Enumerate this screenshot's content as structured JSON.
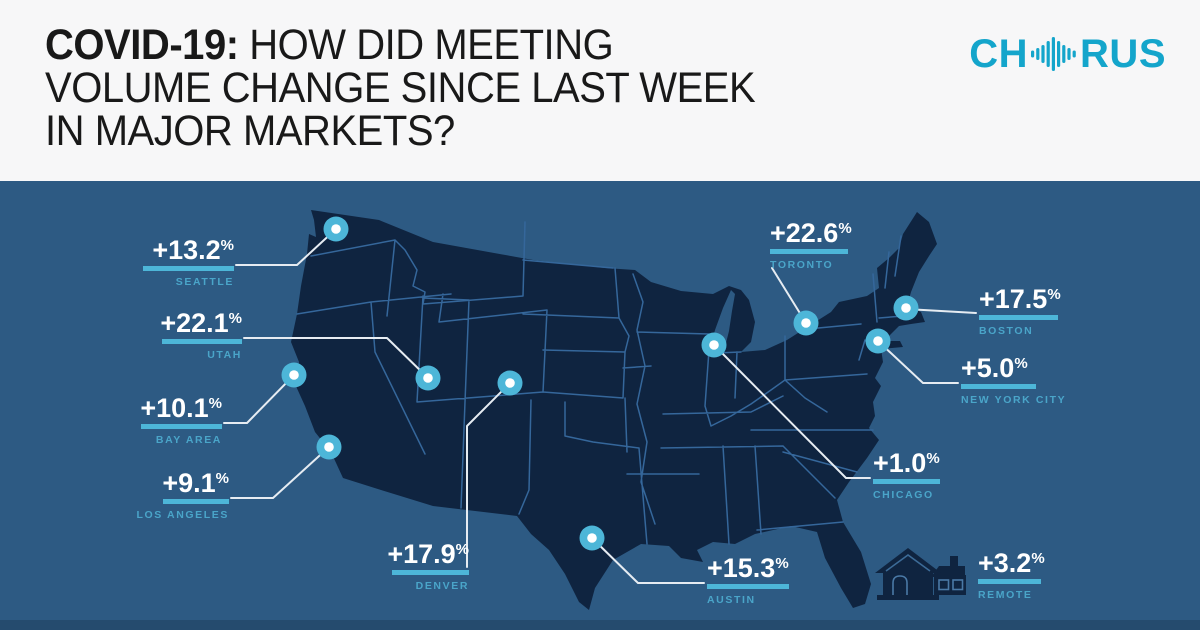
{
  "header": {
    "title": {
      "bold": "COVID-19:",
      "line1_rest": " HOW DID MEETING",
      "line2": "VOLUME CHANGE SINCE LAST WEEK",
      "line3": "IN MAJOR MARKETS?"
    },
    "logo": {
      "text_left": "CH",
      "text_right": "RUS",
      "icon": "soundwave-icon"
    }
  },
  "map": {
    "region": "United States",
    "style": "dark-silhouette-with-state-borders"
  },
  "chart_data": {
    "type": "map",
    "title": "COVID-19: How did meeting volume change since last week in major markets?",
    "unit": "%",
    "percent": "%",
    "legend_position": "none",
    "markets": [
      {
        "id": "seattle",
        "city": "SEATTLE",
        "value": "+13.2",
        "change_pct": 13.2
      },
      {
        "id": "toronto",
        "city": "TORONTO",
        "value": "+22.6",
        "change_pct": 22.6
      },
      {
        "id": "boston",
        "city": "BOSTON",
        "value": "+17.5",
        "change_pct": 17.5
      },
      {
        "id": "utah",
        "city": "UTAH",
        "value": "+22.1",
        "change_pct": 22.1
      },
      {
        "id": "nyc",
        "city": "NEW YORK CITY",
        "value": "+5.0",
        "change_pct": 5.0
      },
      {
        "id": "bayarea",
        "city": "BAY AREA",
        "value": "+10.1",
        "change_pct": 10.1
      },
      {
        "id": "chicago",
        "city": "CHICAGO",
        "value": "+1.0",
        "change_pct": 1.0
      },
      {
        "id": "losangeles",
        "city": "LOS ANGELES",
        "value": "+9.1",
        "change_pct": 9.1
      },
      {
        "id": "denver",
        "city": "DENVER",
        "value": "+17.9",
        "change_pct": 17.9
      },
      {
        "id": "austin",
        "city": "AUSTIN",
        "value": "+15.3",
        "change_pct": 15.3
      },
      {
        "id": "remote",
        "city": "REMOTE",
        "value": "+3.2",
        "change_pct": 3.2,
        "icon": "house-icon"
      }
    ]
  },
  "colors": {
    "brand_teal": "#14A5CB",
    "accent_teal": "#4DB6D8",
    "city_label": "#4AA5C9",
    "background_blue": "#2D5A83",
    "map_navy": "#0F2440",
    "state_border": "#35679B",
    "connector": "#E6ECF2",
    "header_bg": "#F7F7F8",
    "bottom_bar": "#254B6E"
  }
}
